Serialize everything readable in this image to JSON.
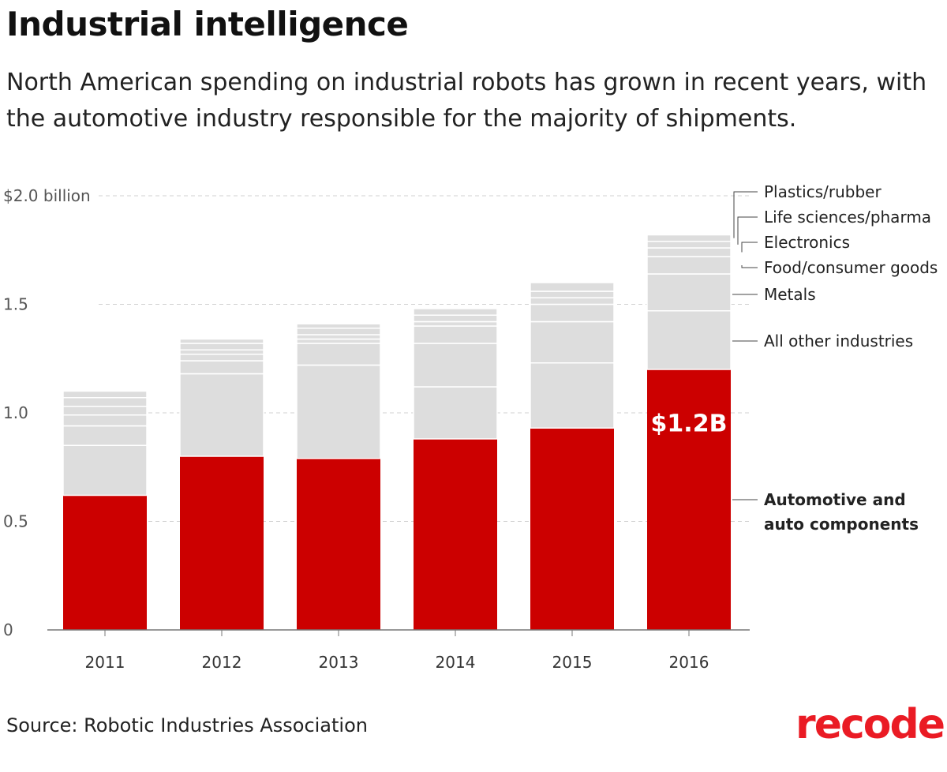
{
  "title": "Industrial intelligence",
  "subtitle": "North American spending on industrial robots has grown in recent years, with the automotive industry responsible for the majority of shipments.",
  "source": "Source: Robotic Industries Association",
  "logo": "recode",
  "colors": {
    "automotive": "#cc0000",
    "other": "#dddddd",
    "grid": "#d0d0d0",
    "axis": "#777777",
    "brand": "#ea1b24"
  },
  "chart_data": {
    "type": "bar",
    "stacked": true,
    "categories": [
      "2011",
      "2012",
      "2013",
      "2014",
      "2015",
      "2016"
    ],
    "ylim": [
      0,
      2.0
    ],
    "yticks": [
      {
        "value": 0,
        "label": "0"
      },
      {
        "value": 0.5,
        "label": "0.5"
      },
      {
        "value": 1.0,
        "label": "1.0"
      },
      {
        "value": 1.5,
        "label": "1.5"
      },
      {
        "value": 2.0,
        "label": "$2.0 billion"
      }
    ],
    "grid": "horizontal dashed",
    "series": [
      {
        "name": "Automotive and auto components",
        "values": [
          0.62,
          0.8,
          0.79,
          0.88,
          0.93,
          1.2
        ]
      },
      {
        "name": "All other industries",
        "values": [
          0.23,
          0.38,
          0.43,
          0.24,
          0.3,
          0.27
        ]
      },
      {
        "name": "Metals",
        "values": [
          0.09,
          0.06,
          0.1,
          0.2,
          0.19,
          0.17
        ]
      },
      {
        "name": "Food/consumer goods",
        "values": [
          0.05,
          0.03,
          0.02,
          0.08,
          0.08,
          0.08
        ]
      },
      {
        "name": "Electronics",
        "values": [
          0.04,
          0.02,
          0.02,
          0.02,
          0.03,
          0.04
        ]
      },
      {
        "name": "Life sciences/pharma",
        "values": [
          0.04,
          0.03,
          0.03,
          0.03,
          0.03,
          0.03
        ]
      },
      {
        "name": "Plastics/rubber",
        "values": [
          0.03,
          0.02,
          0.02,
          0.03,
          0.04,
          0.03
        ]
      }
    ],
    "legend_labels": [
      {
        "series": "Plastics/rubber",
        "text": "Plastics/rubber"
      },
      {
        "series": "Life sciences/pharma",
        "text": "Life sciences/pharma"
      },
      {
        "series": "Electronics",
        "text": "Electronics"
      },
      {
        "series": "Food/consumer goods",
        "text": "Food/consumer goods"
      },
      {
        "series": "Metals",
        "text": "Metals"
      },
      {
        "series": "All other industries",
        "text": "All other industries"
      },
      {
        "series": "Automotive and auto components",
        "text": "Automotive and\nauto components"
      }
    ],
    "annotations": [
      {
        "category": "2016",
        "series": "Automotive and auto components",
        "text": "$1.2B"
      }
    ],
    "legend_placement": "right"
  }
}
